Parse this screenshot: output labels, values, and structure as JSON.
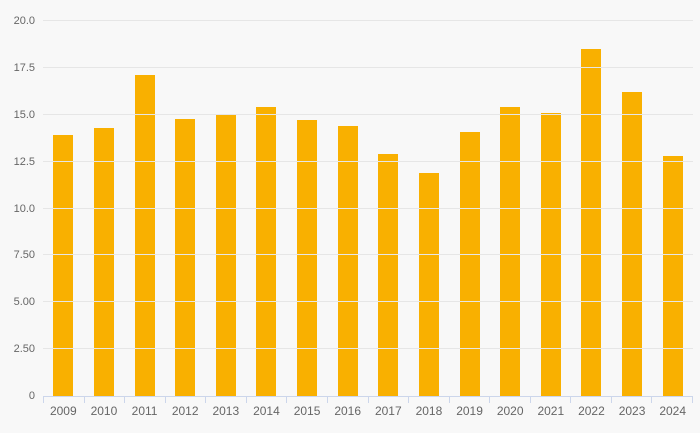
{
  "chart_data": {
    "type": "bar",
    "title": "",
    "categories": [
      "2009",
      "2010",
      "2011",
      "2012",
      "2013",
      "2014",
      "2015",
      "2016",
      "2017",
      "2018",
      "2019",
      "2020",
      "2021",
      "2022",
      "2023",
      "2024"
    ],
    "values": [
      13.9,
      14.3,
      17.1,
      14.8,
      15.0,
      15.4,
      14.7,
      14.4,
      12.9,
      11.9,
      14.1,
      15.4,
      15.1,
      18.5,
      16.2,
      12.8
    ],
    "xlabel": "",
    "ylabel": "",
    "ylim": [
      0,
      20
    ],
    "y_tick_values": [
      20,
      17.5,
      15,
      12.5,
      10,
      7.5,
      5,
      2.5,
      0
    ],
    "y_tick_labels": [
      "20.0",
      "17.5",
      "15.0",
      "12.5",
      "10.0",
      "7.50",
      "5.00",
      "2.50",
      "0"
    ],
    "grid": "horizontal",
    "legend": "none",
    "colors": {
      "bar": "#f9b000",
      "background": "#f8f8f8",
      "gridline": "#e6e6e6",
      "axis_line": "#ccd6eb",
      "label_text": "#666666"
    }
  }
}
